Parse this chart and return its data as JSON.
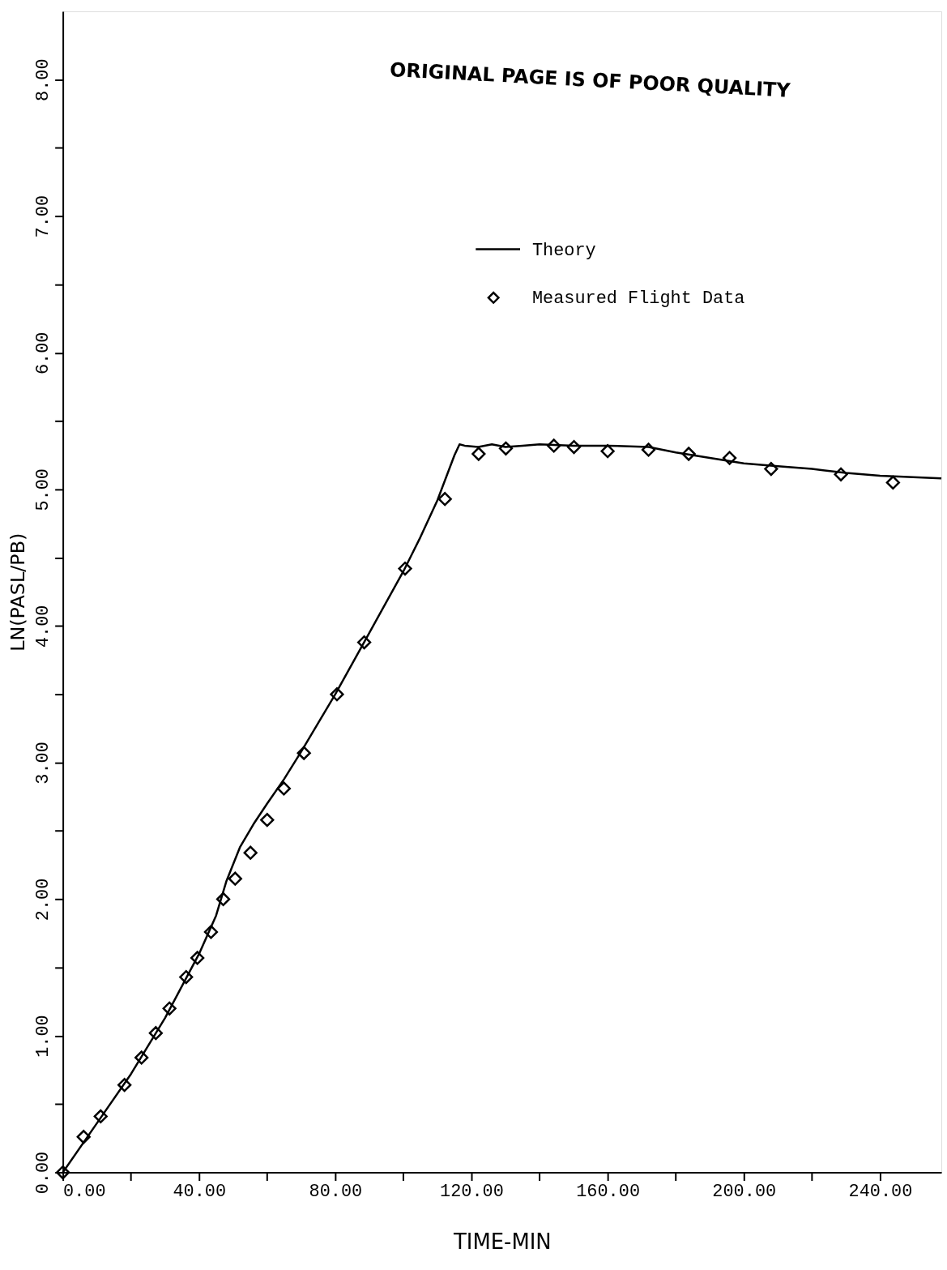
{
  "chart_data": {
    "type": "line",
    "xlabel": "TIME-MIN",
    "ylabel": "LN(PASL/PB)",
    "annotations": [
      "ORIGINAL PAGE IS OF POOR QUALITY"
    ],
    "xlim": [
      0,
      258
    ],
    "ylim": [
      0,
      8.5
    ],
    "xticks": [
      {
        "value": 0,
        "label": "0.00"
      },
      {
        "value": 20,
        "label": null
      },
      {
        "value": 40,
        "label": "40.00"
      },
      {
        "value": 60,
        "label": null
      },
      {
        "value": 80,
        "label": "80.00"
      },
      {
        "value": 100,
        "label": null
      },
      {
        "value": 120,
        "label": "120.00"
      },
      {
        "value": 140,
        "label": null
      },
      {
        "value": 160,
        "label": "160.00"
      },
      {
        "value": 180,
        "label": null
      },
      {
        "value": 200,
        "label": "200.00"
      },
      {
        "value": 220,
        "label": null
      },
      {
        "value": 240,
        "label": "240.00"
      }
    ],
    "yticks": [
      {
        "value": 0,
        "label": "0.00"
      },
      {
        "value": 0.5,
        "label": null
      },
      {
        "value": 1,
        "label": "1.00"
      },
      {
        "value": 1.5,
        "label": null
      },
      {
        "value": 2,
        "label": "2.00"
      },
      {
        "value": 2.5,
        "label": null
      },
      {
        "value": 3,
        "label": "3.00"
      },
      {
        "value": 3.5,
        "label": null
      },
      {
        "value": 4,
        "label": "4.00"
      },
      {
        "value": 4.5,
        "label": null
      },
      {
        "value": 5,
        "label": "5.00"
      },
      {
        "value": 5.5,
        "label": null
      },
      {
        "value": 6,
        "label": "6.00"
      },
      {
        "value": 6.5,
        "label": null
      },
      {
        "value": 7,
        "label": "7.00"
      },
      {
        "value": 7.5,
        "label": null
      },
      {
        "value": 8,
        "label": "8.00"
      }
    ],
    "grid": false,
    "legend": "top",
    "series": [
      {
        "name": "Theory",
        "color": "#000000",
        "line_style": "solid",
        "x": [
          0,
          10,
          20,
          30,
          40,
          45,
          48,
          52,
          56,
          60,
          65,
          70,
          80,
          90,
          100,
          105,
          110,
          115,
          116.5,
          118,
          122,
          126,
          130,
          135,
          140,
          150,
          160,
          172,
          180,
          190,
          200,
          210,
          220,
          230,
          240,
          258
        ],
        "values": [
          0,
          0.36,
          0.72,
          1.13,
          1.6,
          1.88,
          2.13,
          2.38,
          2.55,
          2.7,
          2.88,
          3.08,
          3.5,
          3.95,
          4.4,
          4.65,
          4.92,
          5.25,
          5.33,
          5.32,
          5.31,
          5.33,
          5.31,
          5.32,
          5.33,
          5.32,
          5.32,
          5.31,
          5.27,
          5.23,
          5.19,
          5.17,
          5.15,
          5.12,
          5.1,
          5.08
        ]
      },
      {
        "name": "Measured Flight Data",
        "type": "scatter",
        "color": "#000000",
        "marker": "diamond",
        "x": [
          0,
          6.1,
          11.1,
          18.1,
          23.1,
          27.3,
          31.3,
          36.2,
          39.5,
          43.5,
          47.1,
          50.6,
          55.1,
          60,
          64.9,
          70.8,
          80.5,
          88.5,
          100.5,
          112.2,
          122.1,
          130.1,
          144.2,
          150.1,
          160,
          172,
          183.8,
          195.8,
          208,
          228.5,
          243.8
        ],
        "values": [
          0,
          0.26,
          0.41,
          0.64,
          0.84,
          1.02,
          1.2,
          1.43,
          1.57,
          1.76,
          2.0,
          2.15,
          2.34,
          2.58,
          2.81,
          3.07,
          3.5,
          3.88,
          4.42,
          4.93,
          5.26,
          5.3,
          5.32,
          5.31,
          5.28,
          5.29,
          5.26,
          5.23,
          5.15,
          5.11,
          5.05
        ]
      }
    ]
  }
}
